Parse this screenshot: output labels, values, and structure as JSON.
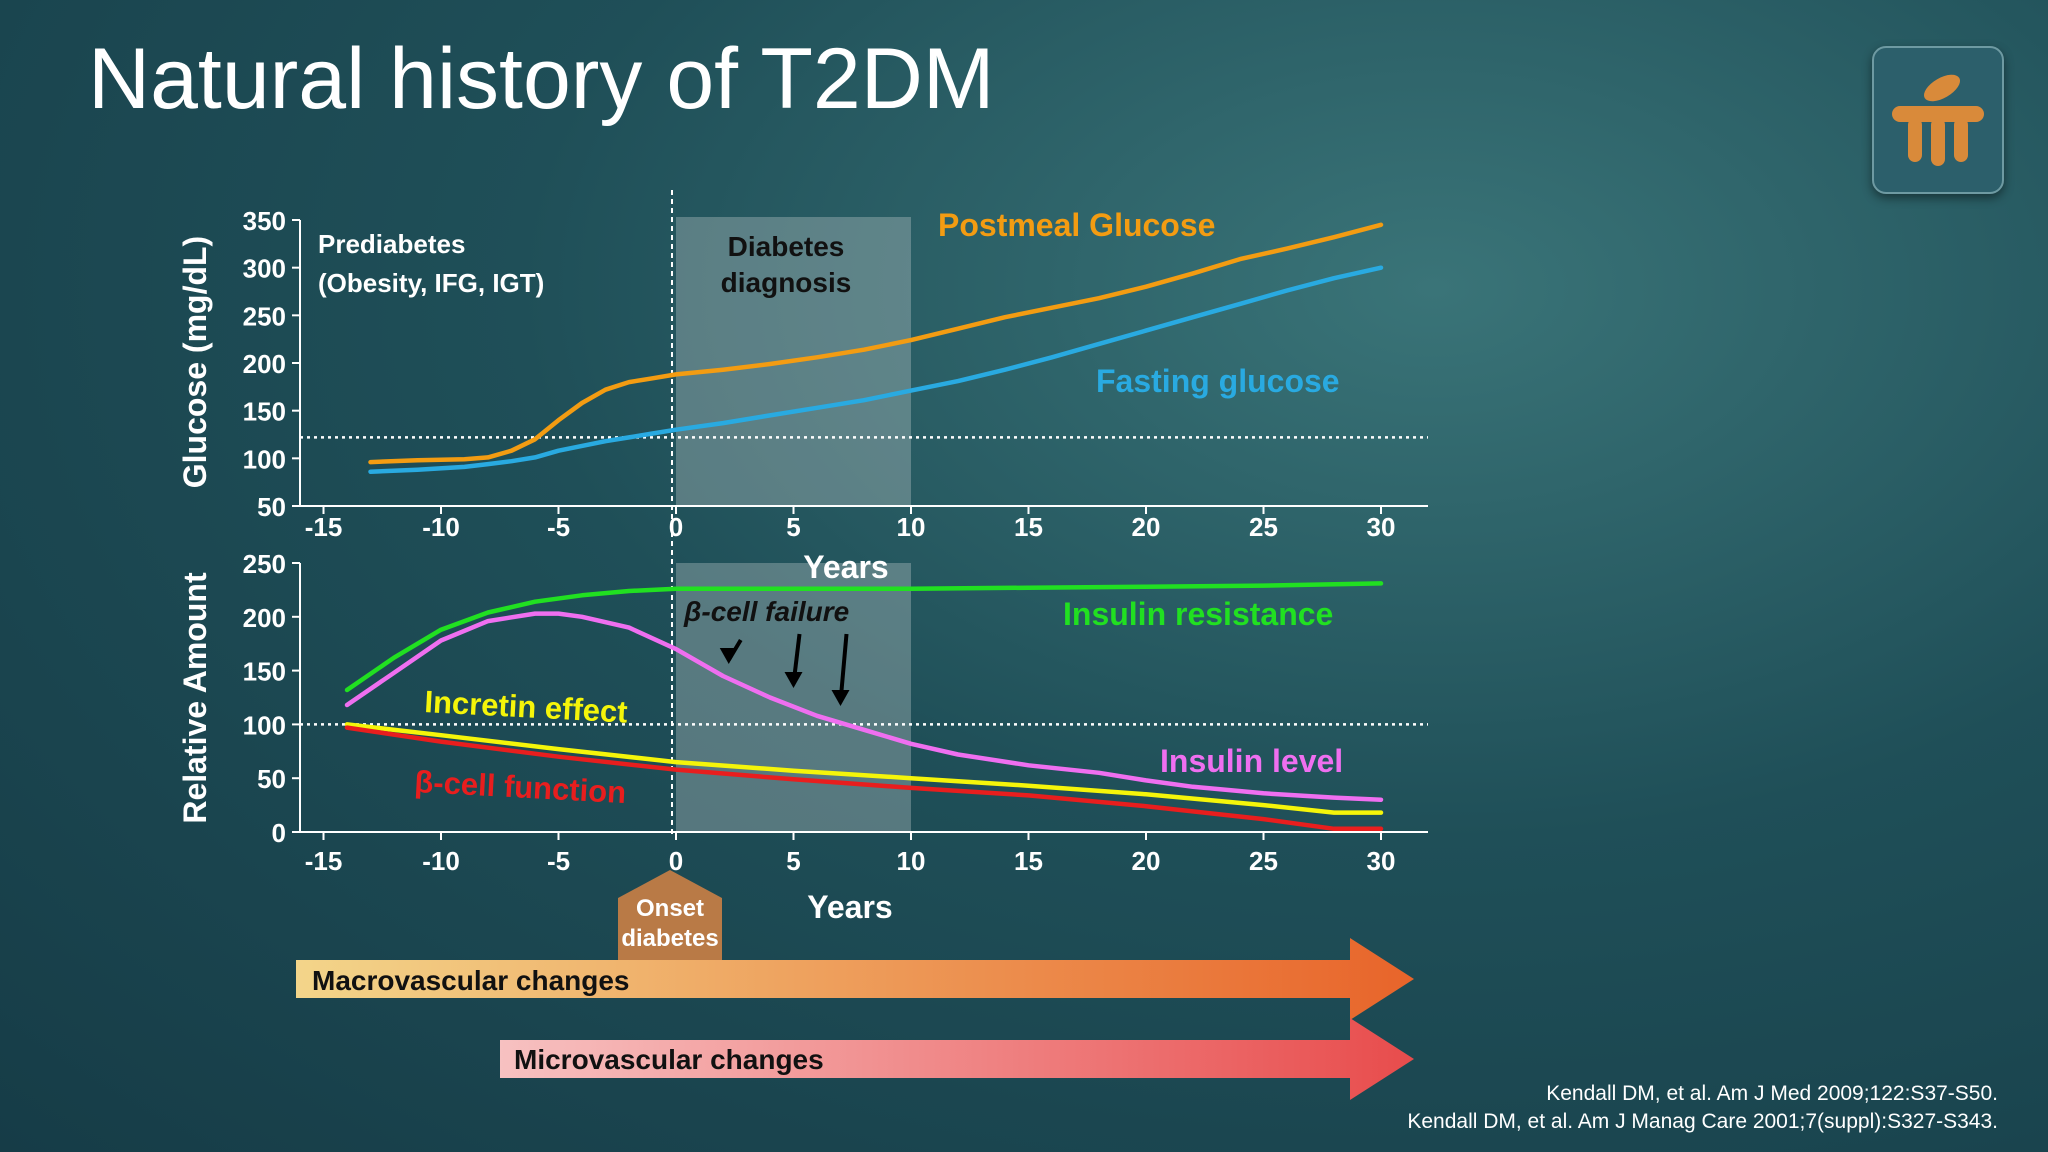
{
  "slide": {
    "title": "Natural history of T2DM",
    "references": [
      "Kendall DM, et al. Am J Med 2009;122:S37-S50.",
      "Kendall DM, et al. Am J Manag Care 2001;7(suppl):S327-S343."
    ],
    "logo_icon": "table-logo-icon"
  },
  "colors": {
    "postmeal": "#f39c12",
    "fasting": "#29aae1",
    "insulin_resistance": "#21e021",
    "insulin_level": "#ef6ff0",
    "incretin": "#f5f50a",
    "beta_cell": "#e81e1e",
    "macro_start": "#f3d58a",
    "macro_end": "#e8642a",
    "micro_start": "#f7c1c1",
    "micro_end": "#e84c4c",
    "onset": "#b97a46",
    "logo": "#d98a3a"
  },
  "annotations": {
    "prediabetes_line1": "Prediabetes",
    "prediabetes_line2": "(Obesity, IFG, IGT)",
    "diagnosis_line1": "Diabetes",
    "diagnosis_line2": "diagnosis",
    "beta_cell_failure": "β-cell failure",
    "onset_line1": "Onset",
    "onset_line2": "diabetes",
    "macrovascular": "Macrovascular changes",
    "microvascular": "Microvascular changes"
  },
  "chart_data": [
    {
      "type": "line",
      "ylabel": "Glucose  (mg/dL)",
      "xlabel": "Years",
      "xlim": [
        -16,
        32
      ],
      "ylim": [
        50,
        350
      ],
      "xticks": [
        -15,
        -10,
        -5,
        0,
        5,
        10,
        15,
        20,
        25,
        30
      ],
      "yticks": [
        50,
        100,
        150,
        200,
        250,
        300,
        350
      ],
      "reference_line": 122,
      "shaded_region": [
        0,
        10
      ],
      "series": [
        {
          "name": "Postmeal Glucose",
          "x": [
            -13,
            -11,
            -9,
            -8,
            -7,
            -6,
            -5,
            -4,
            -3,
            -2,
            -1,
            0,
            2,
            4,
            6,
            8,
            10,
            12,
            14,
            16,
            18,
            20,
            22,
            24,
            26,
            28,
            30
          ],
          "y": [
            96,
            98,
            99,
            101,
            108,
            120,
            140,
            158,
            172,
            180,
            184,
            188,
            193,
            199,
            206,
            214,
            224,
            236,
            248,
            258,
            268,
            280,
            294,
            309,
            320,
            332,
            345
          ]
        },
        {
          "name": "Fasting glucose",
          "x": [
            -13,
            -11,
            -9,
            -8,
            -7,
            -6,
            -5,
            -4,
            -3,
            -2,
            -1,
            0,
            2,
            4,
            6,
            8,
            10,
            12,
            14,
            16,
            18,
            20,
            22,
            24,
            26,
            28,
            30
          ],
          "y": [
            86,
            88,
            91,
            94,
            97,
            101,
            108,
            113,
            118,
            122,
            126,
            130,
            137,
            145,
            153,
            161,
            171,
            181,
            193,
            206,
            220,
            234,
            248,
            262,
            276,
            289,
            300
          ]
        }
      ]
    },
    {
      "type": "line",
      "ylabel": "Relative Amount",
      "xlabel": "Years",
      "xlim": [
        -16,
        32
      ],
      "ylim": [
        0,
        250
      ],
      "xticks": [
        -15,
        -10,
        -5,
        0,
        5,
        10,
        15,
        20,
        25,
        30
      ],
      "yticks": [
        0,
        50,
        100,
        150,
        200,
        250
      ],
      "reference_line": 100,
      "shaded_region": [
        0,
        10
      ],
      "series": [
        {
          "name": "Insulin resistance",
          "x": [
            -14,
            -12,
            -10,
            -8,
            -6,
            -4,
            -2,
            0,
            5,
            10,
            15,
            20,
            25,
            30
          ],
          "y": [
            132,
            162,
            188,
            204,
            214,
            220,
            224,
            226,
            226,
            226,
            227,
            228,
            229,
            231
          ]
        },
        {
          "name": "Insulin level",
          "x": [
            -14,
            -12,
            -10,
            -8,
            -6,
            -5,
            -4,
            -2,
            0,
            2,
            4,
            6,
            8,
            10,
            12,
            15,
            18,
            20,
            22,
            25,
            28,
            30
          ],
          "y": [
            118,
            148,
            178,
            196,
            203,
            203,
            200,
            190,
            170,
            145,
            125,
            108,
            95,
            82,
            72,
            62,
            55,
            48,
            42,
            36,
            32,
            30
          ]
        },
        {
          "name": "Incretin effect",
          "x": [
            -14,
            -10,
            -5,
            0,
            5,
            10,
            15,
            20,
            25,
            28,
            30
          ],
          "y": [
            100,
            90,
            77,
            65,
            57,
            50,
            43,
            35,
            25,
            18,
            18
          ]
        },
        {
          "name": "β-cell function",
          "x": [
            -14,
            -10,
            -5,
            0,
            5,
            10,
            15,
            20,
            25,
            28,
            30
          ],
          "y": [
            97,
            84,
            70,
            58,
            49,
            41,
            34,
            24,
            12,
            3,
            3
          ]
        }
      ],
      "arrows_at_x": [
        2.5,
        5,
        7
      ]
    }
  ]
}
